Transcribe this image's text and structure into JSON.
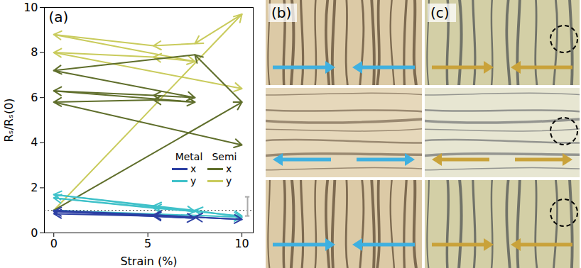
{
  "chart_data": {
    "type": "line",
    "panel_label": "(a)",
    "x_label": "Strain (%)",
    "y_label": "Rₛ/Rₛ(0)",
    "xlim": [
      -0.5,
      10.6
    ],
    "xticks": [
      0,
      5,
      10
    ],
    "ylim": [
      0,
      10
    ],
    "yticks": [
      0,
      2,
      4,
      6,
      8,
      10
    ],
    "marker": "arrow",
    "legend": "lower right",
    "reference_line": 1,
    "error_bar": {
      "x": 10.3,
      "lower": 0.75,
      "upper": 1.6
    },
    "series": [
      {
        "group": "Metal",
        "name": "x",
        "color": "#2c3fa3",
        "x": [
          0,
          10,
          7.5,
          5.3,
          0,
          7.5,
          5.3,
          0
        ],
        "values": [
          1.0,
          0.6,
          0.7,
          0.8,
          0.95,
          0.65,
          0.75,
          0.85
        ]
      },
      {
        "group": "Metal",
        "name": "y",
        "color": "#3fc1c9",
        "x": [
          0,
          10,
          7.5,
          5.3,
          0,
          7.5,
          5.3,
          0,
          10
        ],
        "values": [
          1.0,
          0.7,
          1.0,
          1.2,
          1.7,
          0.95,
          1.1,
          1.55,
          0.75
        ]
      },
      {
        "group": "Semi",
        "name": "x",
        "color": "#5f6e2b",
        "x": [
          0,
          10,
          7.5,
          0,
          7.5,
          5.3,
          0,
          7.5,
          5.3,
          0,
          10
        ],
        "values": [
          1.0,
          5.8,
          7.9,
          7.2,
          6.0,
          6.1,
          6.3,
          5.8,
          5.9,
          5.8,
          3.9
        ]
      },
      {
        "group": "Semi",
        "name": "y",
        "color": "#c9cb5c",
        "x": [
          0,
          10,
          7.5,
          5.3,
          0,
          7.5,
          5.3,
          0,
          10
        ],
        "values": [
          1.0,
          9.7,
          8.4,
          8.3,
          8.8,
          7.6,
          7.8,
          8.0,
          6.4
        ]
      }
    ]
  },
  "image_panels": [
    {
      "label": "(b)"
    },
    {
      "label": "(c)"
    }
  ]
}
